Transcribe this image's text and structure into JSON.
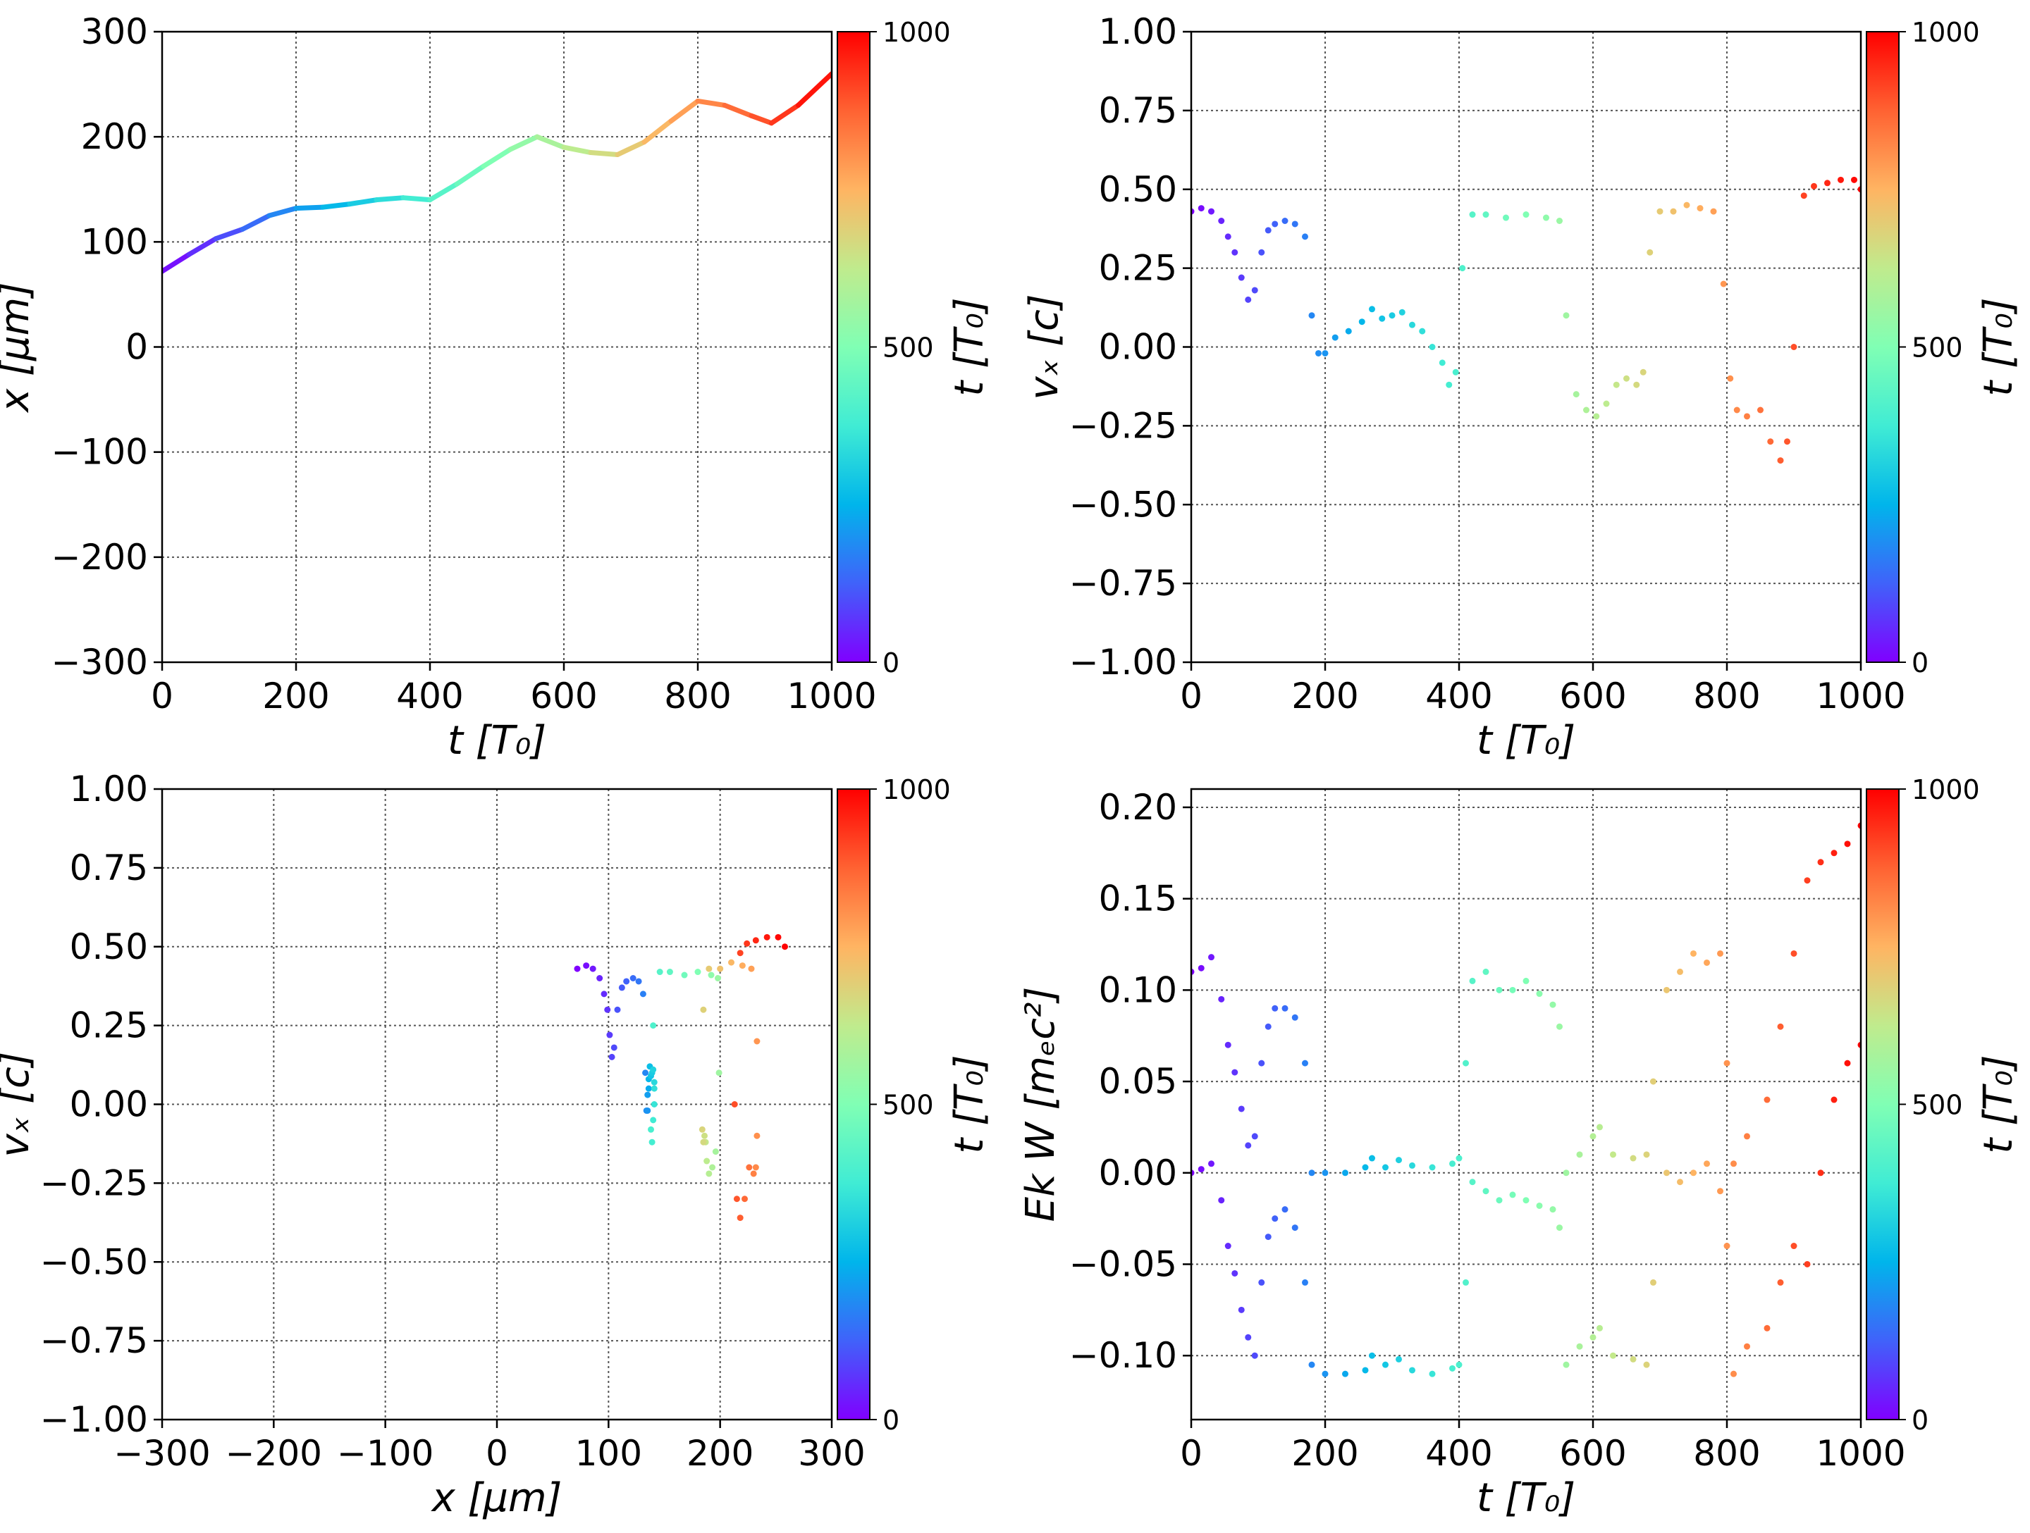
{
  "chart_data": [
    {
      "type": "line",
      "panel": "top-left",
      "xlabel": "t  [T₀]",
      "ylabel": "x  [μm]",
      "xlim": [
        0,
        1000
      ],
      "ylim": [
        -300,
        300
      ],
      "xticks": [
        "0",
        "200",
        "400",
        "600",
        "800",
        "1000"
      ],
      "yticks": [
        "300",
        "200",
        "100",
        "0",
        "−100",
        "−200",
        "−300"
      ],
      "grid": true,
      "colorbar": {
        "label": "t [T₀]",
        "ticks": [
          "1000",
          "500",
          "0"
        ],
        "colormap": "rainbow",
        "range": [
          0,
          1000
        ]
      },
      "x": [
        0,
        40,
        80,
        120,
        160,
        200,
        240,
        280,
        320,
        360,
        400,
        440,
        480,
        520,
        560,
        600,
        640,
        680,
        720,
        760,
        800,
        840,
        880,
        910,
        950,
        1000
      ],
      "y": [
        72,
        88,
        103,
        112,
        125,
        132,
        133,
        136,
        140,
        142,
        140,
        155,
        172,
        188,
        200,
        190,
        185,
        183,
        195,
        215,
        234,
        230,
        220,
        213,
        230,
        260
      ]
    },
    {
      "type": "scatter",
      "panel": "top-right",
      "xlabel": "t [T₀]",
      "ylabel": "vₓ [c]",
      "xlim": [
        0,
        1000
      ],
      "ylim": [
        -1,
        1
      ],
      "xticks": [
        "0",
        "200",
        "400",
        "600",
        "800",
        "1000"
      ],
      "yticks": [
        "1.00",
        "0.75",
        "0.50",
        "0.25",
        "0.00",
        "−0.25",
        "−0.50",
        "−0.75",
        "−1.00"
      ],
      "grid": true,
      "colorbar": {
        "label": "t [T₀]",
        "ticks": [
          "1000",
          "500",
          "0"
        ],
        "colormap": "rainbow",
        "range": [
          0,
          1000
        ]
      },
      "x": [
        0,
        15,
        30,
        45,
        55,
        65,
        75,
        85,
        95,
        105,
        115,
        125,
        140,
        155,
        170,
        180,
        190,
        200,
        215,
        235,
        255,
        270,
        285,
        300,
        315,
        330,
        345,
        360,
        375,
        385,
        395,
        405,
        420,
        440,
        470,
        500,
        530,
        550,
        560,
        575,
        590,
        605,
        620,
        635,
        650,
        665,
        675,
        685,
        700,
        720,
        740,
        760,
        780,
        795,
        805,
        815,
        830,
        850,
        865,
        880,
        890,
        900,
        915,
        930,
        950,
        970,
        990,
        1000
      ],
      "y": [
        0.43,
        0.44,
        0.43,
        0.4,
        0.35,
        0.3,
        0.22,
        0.15,
        0.18,
        0.3,
        0.37,
        0.39,
        0.4,
        0.39,
        0.35,
        0.1,
        -0.02,
        -0.02,
        0.03,
        0.05,
        0.08,
        0.12,
        0.09,
        0.1,
        0.11,
        0.07,
        0.05,
        0.0,
        -0.05,
        -0.12,
        -0.08,
        0.25,
        0.42,
        0.42,
        0.41,
        0.42,
        0.41,
        0.4,
        0.1,
        -0.15,
        -0.2,
        -0.22,
        -0.18,
        -0.12,
        -0.1,
        -0.12,
        -0.08,
        0.3,
        0.43,
        0.43,
        0.45,
        0.44,
        0.43,
        0.2,
        -0.1,
        -0.2,
        -0.22,
        -0.2,
        -0.3,
        -0.36,
        -0.3,
        0.0,
        0.48,
        0.51,
        0.52,
        0.53,
        0.53,
        0.5
      ]
    },
    {
      "type": "scatter",
      "panel": "bottom-left",
      "xlabel": "x [μm]",
      "ylabel": "vₓ [c]",
      "xlim": [
        -300,
        300
      ],
      "ylim": [
        -1,
        1
      ],
      "xticks": [
        "−300",
        "−200",
        "−100",
        "0",
        "100",
        "200",
        "300"
      ],
      "yticks": [
        "1.00",
        "0.75",
        "0.50",
        "0.25",
        "0.00",
        "−0.25",
        "−0.50",
        "−0.75",
        "−1.00"
      ],
      "grid": true,
      "colorbar": {
        "label": "t [T₀]",
        "ticks": [
          "1000",
          "500",
          "0"
        ],
        "colormap": "rainbow",
        "range": [
          0,
          1000
        ]
      },
      "t": [
        0,
        15,
        30,
        45,
        55,
        65,
        75,
        85,
        95,
        105,
        115,
        125,
        140,
        155,
        170,
        180,
        190,
        200,
        215,
        235,
        255,
        270,
        285,
        300,
        315,
        330,
        345,
        360,
        375,
        385,
        395,
        405,
        420,
        440,
        470,
        500,
        530,
        550,
        560,
        575,
        590,
        605,
        620,
        635,
        650,
        665,
        675,
        685,
        700,
        720,
        740,
        760,
        780,
        795,
        805,
        815,
        830,
        850,
        865,
        880,
        890,
        900,
        915,
        930,
        950,
        970,
        990,
        1000
      ],
      "x": [
        72,
        80,
        86,
        92,
        96,
        99,
        101,
        103,
        105,
        108,
        112,
        116,
        122,
        127,
        131,
        133,
        134,
        135,
        135,
        136,
        136,
        137,
        138,
        139,
        140,
        141,
        141,
        141,
        140,
        139,
        138,
        140,
        146,
        155,
        168,
        180,
        192,
        198,
        199,
        196,
        193,
        190,
        188,
        187,
        186,
        185,
        184,
        185,
        190,
        200,
        210,
        220,
        228,
        233,
        233,
        232,
        230,
        226,
        222,
        218,
        215,
        213,
        218,
        224,
        232,
        242,
        252,
        258
      ],
      "y": [
        0.43,
        0.44,
        0.43,
        0.4,
        0.35,
        0.3,
        0.22,
        0.15,
        0.18,
        0.3,
        0.37,
        0.39,
        0.4,
        0.39,
        0.35,
        0.1,
        -0.02,
        -0.02,
        0.03,
        0.05,
        0.08,
        0.12,
        0.09,
        0.1,
        0.11,
        0.07,
        0.05,
        0.0,
        -0.05,
        -0.12,
        -0.08,
        0.25,
        0.42,
        0.42,
        0.41,
        0.42,
        0.41,
        0.4,
        0.1,
        -0.15,
        -0.2,
        -0.22,
        -0.18,
        -0.12,
        -0.1,
        -0.12,
        -0.08,
        0.3,
        0.43,
        0.43,
        0.45,
        0.44,
        0.43,
        0.2,
        -0.1,
        -0.2,
        -0.22,
        -0.2,
        -0.3,
        -0.36,
        -0.3,
        0.0,
        0.48,
        0.51,
        0.52,
        0.53,
        0.53,
        0.5
      ]
    },
    {
      "type": "scatter",
      "panel": "bottom-right",
      "xlabel": "t [T₀]",
      "ylabel": "Ek W [mₑc²]",
      "xlim": [
        0,
        1000
      ],
      "ylim": [
        -0.135,
        0.21
      ],
      "xticks": [
        "0",
        "200",
        "400",
        "600",
        "800",
        "1000"
      ],
      "yticks": [
        "0.20",
        "0.15",
        "0.10",
        "0.05",
        "0.00",
        "−0.05",
        "−0.10"
      ],
      "ytick_values": [
        0.2,
        0.15,
        0.1,
        0.05,
        0.0,
        -0.05,
        -0.1
      ],
      "grid": true,
      "colorbar": {
        "label": "t [T₀]",
        "ticks": [
          "1000",
          "500",
          "0"
        ],
        "colormap": "rainbow",
        "range": [
          0,
          1000
        ]
      },
      "series": [
        {
          "role": "Ek",
          "x": [
            0,
            15,
            30,
            45,
            55,
            65,
            75,
            85,
            95,
            105,
            115,
            125,
            140,
            155,
            170,
            180,
            200,
            230,
            260,
            270,
            290,
            310,
            330,
            360,
            390,
            400,
            410,
            420,
            440,
            460,
            480,
            500,
            520,
            540,
            550,
            560,
            580,
            600,
            610,
            630,
            660,
            680,
            690,
            710,
            730,
            750,
            770,
            790,
            800,
            810,
            830,
            860,
            880,
            900,
            920,
            940,
            960,
            980,
            1000
          ],
          "y": [
            0.11,
            0.112,
            0.118,
            0.095,
            0.07,
            0.055,
            0.035,
            0.015,
            0.02,
            0.06,
            0.08,
            0.09,
            0.09,
            0.085,
            0.06,
            0.0,
            0.0,
            0.0,
            0.003,
            0.008,
            0.003,
            0.007,
            0.004,
            0.003,
            0.005,
            0.008,
            0.06,
            0.105,
            0.11,
            0.1,
            0.1,
            0.105,
            0.098,
            0.092,
            0.08,
            0.0,
            0.01,
            0.02,
            0.025,
            0.01,
            0.008,
            0.01,
            0.05,
            0.1,
            0.11,
            0.12,
            0.115,
            0.12,
            0.06,
            0.005,
            0.02,
            0.04,
            0.08,
            0.12,
            0.16,
            0.17,
            0.175,
            0.18,
            0.19
          ]
        },
        {
          "role": "W",
          "x": [
            0,
            15,
            30,
            45,
            55,
            65,
            75,
            85,
            95,
            105,
            115,
            125,
            140,
            155,
            170,
            180,
            200,
            230,
            260,
            270,
            290,
            310,
            330,
            360,
            390,
            400,
            410,
            420,
            440,
            460,
            480,
            500,
            520,
            540,
            550,
            560,
            580,
            600,
            610,
            630,
            660,
            680,
            690,
            710,
            730,
            750,
            770,
            790,
            800,
            810,
            830,
            860,
            880,
            900,
            920,
            940,
            960,
            980,
            1000
          ],
          "y": [
            0.0,
            0.002,
            0.005,
            -0.015,
            -0.04,
            -0.055,
            -0.075,
            -0.09,
            -0.1,
            -0.06,
            -0.035,
            -0.025,
            -0.02,
            -0.03,
            -0.06,
            -0.105,
            -0.11,
            -0.11,
            -0.108,
            -0.1,
            -0.105,
            -0.102,
            -0.108,
            -0.11,
            -0.107,
            -0.105,
            -0.06,
            -0.005,
            -0.01,
            -0.015,
            -0.012,
            -0.015,
            -0.018,
            -0.02,
            -0.03,
            -0.105,
            -0.095,
            -0.09,
            -0.085,
            -0.1,
            -0.102,
            -0.105,
            -0.06,
            0.0,
            -0.005,
            0.0,
            0.005,
            -0.01,
            -0.04,
            -0.11,
            -0.095,
            -0.085,
            -0.06,
            -0.04,
            -0.05,
            -0.0,
            0.04,
            0.06,
            0.07
          ]
        }
      ]
    }
  ]
}
